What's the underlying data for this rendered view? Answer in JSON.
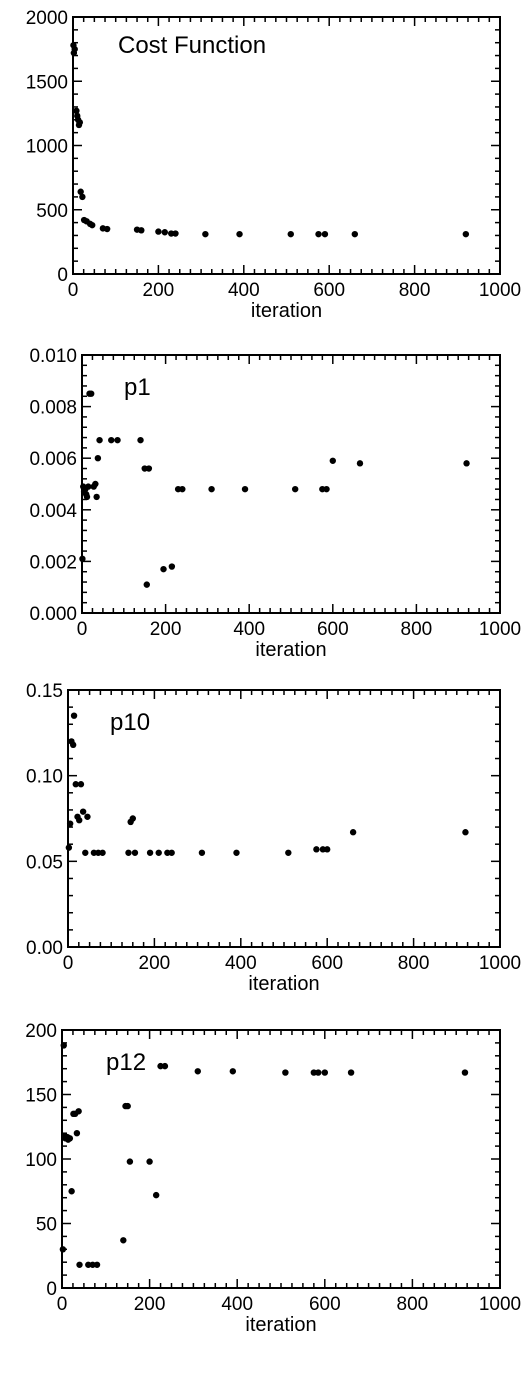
{
  "chart_data": [
    {
      "type": "scatter",
      "title": "Cost Function",
      "xlabel": "iteration",
      "ylabel": "",
      "xlim": [
        0,
        1000
      ],
      "ylim": [
        0,
        2000
      ],
      "xticks": [
        0,
        200,
        400,
        600,
        800,
        1000
      ],
      "yticks": [
        0,
        500,
        1000,
        1500,
        2000
      ],
      "ytick_labels": [
        "0",
        "500",
        "1000",
        "1500",
        "2000"
      ],
      "points": [
        [
          1,
          1780
        ],
        [
          2,
          1720
        ],
        [
          4,
          1750
        ],
        [
          8,
          1270
        ],
        [
          10,
          1230
        ],
        [
          12,
          1200
        ],
        [
          14,
          1160
        ],
        [
          16,
          1180
        ],
        [
          18,
          640
        ],
        [
          22,
          600
        ],
        [
          26,
          420
        ],
        [
          32,
          410
        ],
        [
          40,
          390
        ],
        [
          45,
          380
        ],
        [
          70,
          355
        ],
        [
          80,
          350
        ],
        [
          150,
          345
        ],
        [
          160,
          340
        ],
        [
          200,
          330
        ],
        [
          215,
          325
        ],
        [
          230,
          315
        ],
        [
          240,
          315
        ],
        [
          310,
          310
        ],
        [
          390,
          310
        ],
        [
          510,
          310
        ],
        [
          575,
          310
        ],
        [
          590,
          310
        ],
        [
          660,
          310
        ],
        [
          920,
          310
        ]
      ]
    },
    {
      "type": "scatter",
      "title": "p1",
      "xlabel": "iteration",
      "ylabel": "",
      "xlim": [
        0,
        1000
      ],
      "ylim": [
        0,
        0.01
      ],
      "xticks": [
        0,
        200,
        400,
        600,
        800,
        1000
      ],
      "yticks": [
        0,
        0.002,
        0.004,
        0.006,
        0.008,
        0.01
      ],
      "ytick_labels": [
        "0.000",
        "0.002",
        "0.004",
        "0.006",
        "0.008",
        "0.010"
      ],
      "points": [
        [
          1,
          0.0021
        ],
        [
          3,
          0.0049
        ],
        [
          5,
          0.0047
        ],
        [
          8,
          0.0048
        ],
        [
          10,
          0.0046
        ],
        [
          12,
          0.0045
        ],
        [
          15,
          0.0049
        ],
        [
          18,
          0.0085
        ],
        [
          22,
          0.0085
        ],
        [
          28,
          0.0049
        ],
        [
          32,
          0.005
        ],
        [
          35,
          0.0045
        ],
        [
          38,
          0.006
        ],
        [
          42,
          0.0067
        ],
        [
          70,
          0.0067
        ],
        [
          85,
          0.0067
        ],
        [
          140,
          0.0067
        ],
        [
          150,
          0.0056
        ],
        [
          155,
          0.0011
        ],
        [
          160,
          0.0056
        ],
        [
          195,
          0.0017
        ],
        [
          215,
          0.0018
        ],
        [
          230,
          0.0048
        ],
        [
          240,
          0.0048
        ],
        [
          310,
          0.0048
        ],
        [
          390,
          0.0048
        ],
        [
          510,
          0.0048
        ],
        [
          575,
          0.0048
        ],
        [
          585,
          0.0048
        ],
        [
          600,
          0.0059
        ],
        [
          665,
          0.0058
        ],
        [
          920,
          0.0058
        ]
      ]
    },
    {
      "type": "scatter",
      "title": "p10",
      "xlabel": "iteration",
      "ylabel": "",
      "xlim": [
        0,
        1000
      ],
      "ylim": [
        0,
        0.15
      ],
      "xticks": [
        0,
        200,
        400,
        600,
        800,
        1000
      ],
      "yticks": [
        0,
        0.05,
        0.1,
        0.15
      ],
      "ytick_labels": [
        "0.00",
        "0.05",
        "0.10",
        "0.15"
      ],
      "points": [
        [
          2,
          0.058
        ],
        [
          5,
          0.072
        ],
        [
          8,
          0.12
        ],
        [
          12,
          0.118
        ],
        [
          14,
          0.135
        ],
        [
          18,
          0.095
        ],
        [
          22,
          0.076
        ],
        [
          26,
          0.074
        ],
        [
          30,
          0.095
        ],
        [
          35,
          0.079
        ],
        [
          40,
          0.055
        ],
        [
          45,
          0.076
        ],
        [
          60,
          0.055
        ],
        [
          70,
          0.055
        ],
        [
          80,
          0.055
        ],
        [
          140,
          0.055
        ],
        [
          145,
          0.073
        ],
        [
          150,
          0.075
        ],
        [
          155,
          0.055
        ],
        [
          190,
          0.055
        ],
        [
          210,
          0.055
        ],
        [
          230,
          0.055
        ],
        [
          240,
          0.055
        ],
        [
          310,
          0.055
        ],
        [
          390,
          0.055
        ],
        [
          510,
          0.055
        ],
        [
          575,
          0.057
        ],
        [
          590,
          0.057
        ],
        [
          600,
          0.057
        ],
        [
          660,
          0.067
        ],
        [
          920,
          0.067
        ]
      ]
    },
    {
      "type": "scatter",
      "title": "p12",
      "xlabel": "iteration",
      "ylabel": "",
      "xlim": [
        0,
        1000
      ],
      "ylim": [
        0,
        200
      ],
      "xticks": [
        0,
        200,
        400,
        600,
        800,
        1000
      ],
      "yticks": [
        0,
        50,
        100,
        150,
        200
      ],
      "ytick_labels": [
        "0",
        "50",
        "100",
        "150",
        "200"
      ],
      "points": [
        [
          2,
          30
        ],
        [
          4,
          188
        ],
        [
          6,
          118
        ],
        [
          8,
          116
        ],
        [
          12,
          117
        ],
        [
          14,
          115
        ],
        [
          18,
          116
        ],
        [
          22,
          75
        ],
        [
          26,
          135
        ],
        [
          30,
          135
        ],
        [
          34,
          120
        ],
        [
          38,
          137
        ],
        [
          40,
          18
        ],
        [
          60,
          18
        ],
        [
          70,
          18
        ],
        [
          80,
          18
        ],
        [
          140,
          37
        ],
        [
          145,
          141
        ],
        [
          150,
          141
        ],
        [
          155,
          98
        ],
        [
          200,
          98
        ],
        [
          215,
          72
        ],
        [
          225,
          172
        ],
        [
          235,
          172
        ],
        [
          310,
          168
        ],
        [
          390,
          168
        ],
        [
          510,
          167
        ],
        [
          575,
          167
        ],
        [
          585,
          167
        ],
        [
          600,
          167
        ],
        [
          660,
          167
        ],
        [
          920,
          167
        ]
      ]
    }
  ]
}
